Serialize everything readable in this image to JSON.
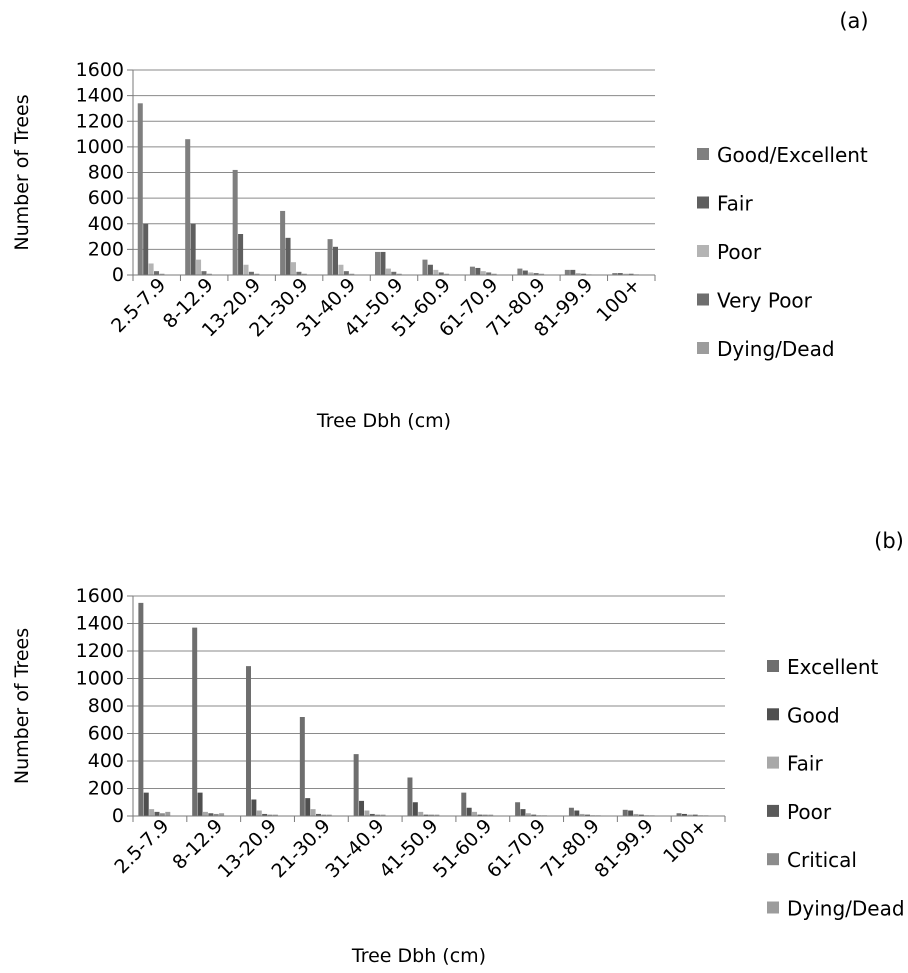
{
  "chart_data": [
    {
      "type": "bar",
      "panel_label": "(a)",
      "xlabel": "Tree Dbh (cm)",
      "ylabel": "Number of Trees",
      "ylim": [
        0,
        1600
      ],
      "yticks": [
        "0",
        "200",
        "400",
        "600",
        "800",
        "1000",
        "1200",
        "1400",
        "1600"
      ],
      "grid": true,
      "legend_position": "right",
      "categories": [
        "2.5-7.9",
        "8-12.9",
        "13-20.9",
        "21-30.9",
        "31-40.9",
        "41-50.9",
        "51-60.9",
        "61-70.9",
        "71-80.9",
        "81-99.9",
        "100+"
      ],
      "series": [
        {
          "name": "Good/Excellent",
          "color": "#7f7f7f",
          "values": [
            1340,
            1060,
            820,
            500,
            280,
            180,
            120,
            65,
            50,
            40,
            15
          ]
        },
        {
          "name": "Fair",
          "color": "#5f5f5f",
          "values": [
            400,
            400,
            320,
            290,
            220,
            180,
            80,
            55,
            35,
            40,
            15
          ]
        },
        {
          "name": "Poor",
          "color": "#b4b4b4",
          "values": [
            90,
            120,
            80,
            100,
            80,
            50,
            40,
            30,
            20,
            15,
            10
          ]
        },
        {
          "name": "Very Poor",
          "color": "#6e6e6e",
          "values": [
            30,
            30,
            25,
            25,
            30,
            25,
            20,
            20,
            15,
            10,
            10
          ]
        },
        {
          "name": "Dying/Dead",
          "color": "#9c9c9c",
          "values": [
            10,
            10,
            10,
            10,
            10,
            10,
            10,
            10,
            10,
            5,
            5
          ]
        }
      ]
    },
    {
      "type": "bar",
      "panel_label": "(b)",
      "xlabel": "Tree Dbh (cm)",
      "ylabel": "Number of Trees",
      "ylim": [
        0,
        1600
      ],
      "yticks": [
        "0",
        "200",
        "400",
        "600",
        "800",
        "1000",
        "1200",
        "1400",
        "1600"
      ],
      "grid": true,
      "legend_position": "right",
      "categories": [
        "2.5-7.9",
        "8-12.9",
        "13-20.9",
        "21-30.9",
        "31-40.9",
        "41-50.9",
        "51-60.9",
        "61-70.9",
        "71-80.9",
        "81-99.9",
        "100+"
      ],
      "series": [
        {
          "name": "Excellent",
          "color": "#6e6e6e",
          "values": [
            1550,
            1370,
            1090,
            720,
            450,
            280,
            170,
            100,
            60,
            45,
            20
          ]
        },
        {
          "name": "Good",
          "color": "#4f4f4f",
          "values": [
            170,
            170,
            120,
            130,
            110,
            100,
            60,
            50,
            40,
            40,
            15
          ]
        },
        {
          "name": "Fair",
          "color": "#a8a8a8",
          "values": [
            50,
            30,
            40,
            50,
            40,
            30,
            30,
            20,
            15,
            15,
            10
          ]
        },
        {
          "name": "Poor",
          "color": "#5a5a5a",
          "values": [
            30,
            20,
            15,
            15,
            15,
            10,
            10,
            10,
            10,
            10,
            10
          ]
        },
        {
          "name": "Critical",
          "color": "#8c8c8c",
          "values": [
            20,
            15,
            10,
            10,
            10,
            10,
            10,
            5,
            5,
            5,
            5
          ]
        },
        {
          "name": "Dying/Dead",
          "color": "#9c9c9c",
          "values": [
            30,
            20,
            10,
            10,
            10,
            10,
            10,
            5,
            5,
            5,
            5
          ]
        }
      ]
    }
  ]
}
